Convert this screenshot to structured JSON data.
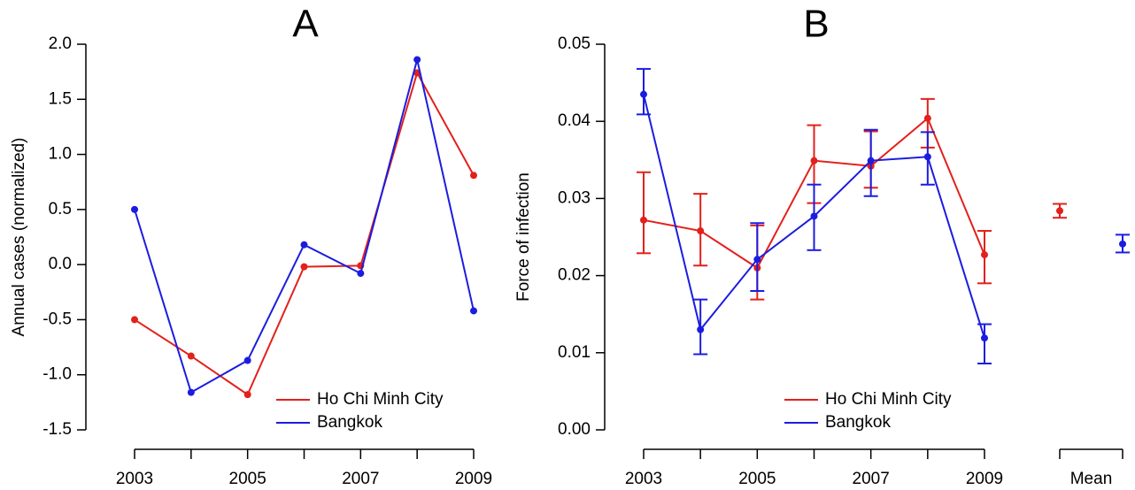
{
  "chart_data": [
    {
      "type": "line",
      "title": "A",
      "y_label": "Annual cases (normalized)",
      "categories": [
        "2003",
        null,
        "2005",
        null,
        "2007",
        null,
        "2009"
      ],
      "ylim": [
        -1.5,
        2.0
      ],
      "yticks": [
        -1.5,
        {
          "value": -1.0,
          "label": "-1.0"
        },
        -0.5,
        {
          "value": 0.0,
          "label": "0.0"
        },
        0.5,
        {
          "value": 1.0,
          "label": "1.0"
        },
        1.5,
        {
          "value": 2.0,
          "label": "2.0"
        }
      ],
      "legend": "bottom-center",
      "series": [
        {
          "name": "Ho Chi Minh City",
          "color": "#e3201b",
          "values": [
            -0.5,
            -0.83,
            -1.18,
            -0.02,
            -0.01,
            1.74,
            0.81
          ]
        },
        {
          "name": "Bangkok",
          "color": "#1c1ce0",
          "values": [
            0.5,
            -1.16,
            -0.87,
            0.18,
            -0.08,
            1.86,
            -0.42
          ]
        }
      ]
    },
    {
      "type": "errorline",
      "title": "B",
      "y_label": "Force of infection",
      "categories": [
        "2003",
        null,
        "2005",
        null,
        "2007",
        null,
        "2009"
      ],
      "mean_label": "Mean",
      "ylim": [
        0,
        0.05
      ],
      "yticks": [
        {
          "value": 0,
          "label": "0.00"
        },
        0.01,
        0.02,
        0.03,
        0.04,
        0.05
      ],
      "legend": "bottom-center",
      "series": [
        {
          "name": "Ho Chi Minh City",
          "color": "#e3201b",
          "values": [
            0.0272,
            0.0258,
            0.021,
            0.0349,
            0.0342,
            0.0404,
            0.0227
          ],
          "lower": [
            0.0229,
            0.0213,
            0.0169,
            0.0294,
            0.0314,
            0.0366,
            0.019
          ],
          "upper": [
            0.0334,
            0.0306,
            0.0265,
            0.0395,
            0.0387,
            0.0429,
            0.0258
          ],
          "mean": 0.0284,
          "mean_lower": 0.0275,
          "mean_upper": 0.0293
        },
        {
          "name": "Bangkok",
          "color": "#1c1ce0",
          "values": [
            0.0435,
            0.013,
            0.0221,
            0.0277,
            0.0349,
            0.0354,
            0.0119
          ],
          "lower": [
            0.0409,
            0.0098,
            0.018,
            0.0233,
            0.0303,
            0.0318,
            0.0086
          ],
          "upper": [
            0.0468,
            0.0169,
            0.0268,
            0.0318,
            0.0389,
            0.0386,
            0.0137
          ],
          "mean": 0.0241,
          "mean_lower": 0.023,
          "mean_upper": 0.0253
        }
      ]
    }
  ]
}
